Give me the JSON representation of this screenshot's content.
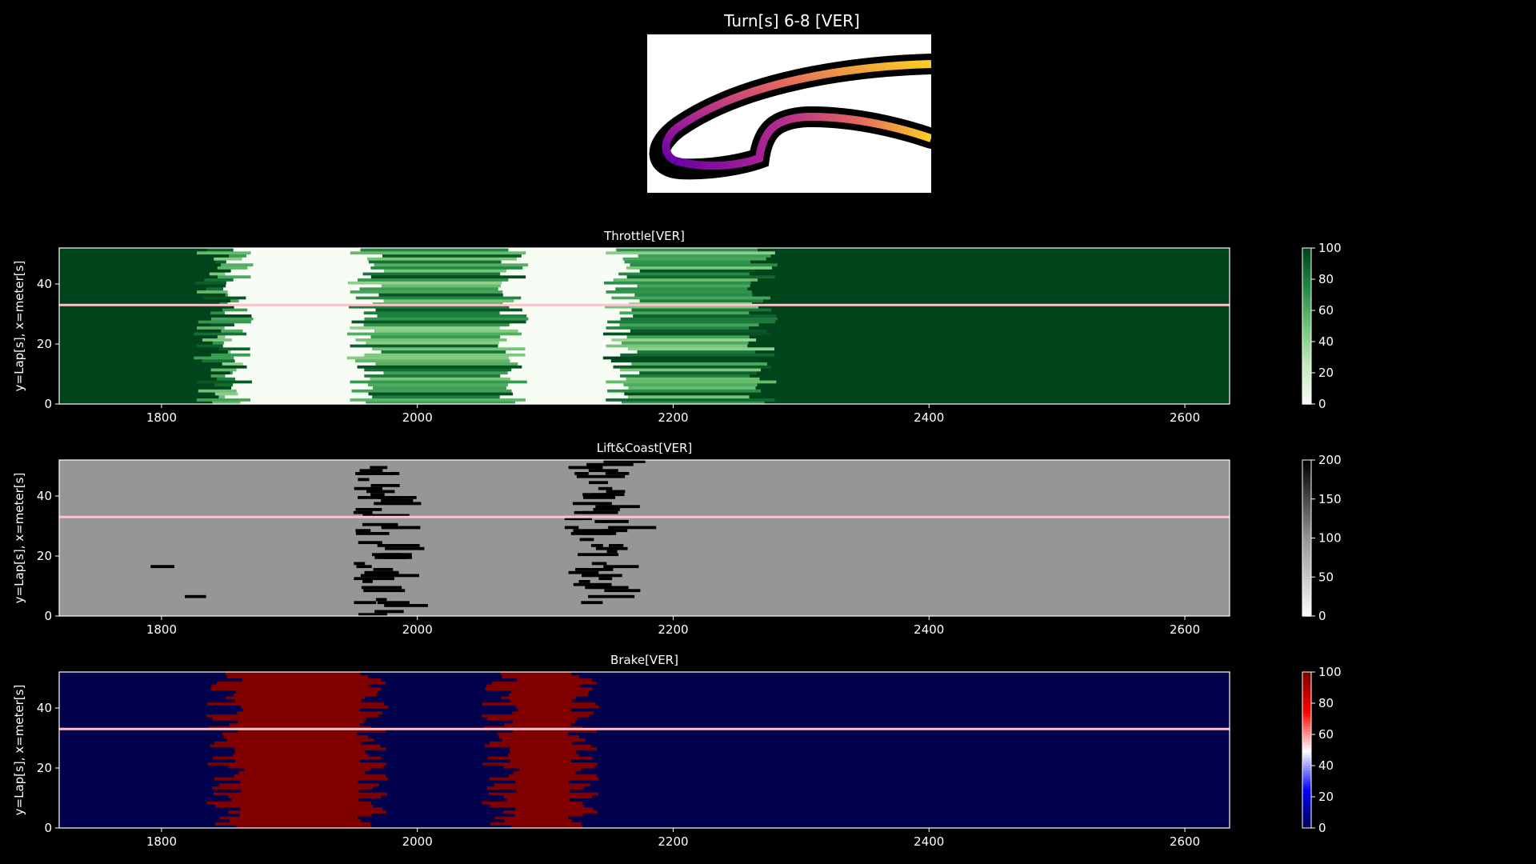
{
  "title": "Turn[s] 6-8 [VER]",
  "track_map": {
    "colormap": "plasma"
  },
  "chart_data": [
    {
      "type": "heatmap",
      "title": "Throttle[VER]",
      "ylabel": "y=Lap[s], x=meter[s]",
      "xlim": [
        1720,
        2635
      ],
      "ylim": [
        0,
        52
      ],
      "xticks": [
        1800,
        2000,
        2200,
        2400,
        2600
      ],
      "yticks": [
        0,
        20,
        40
      ],
      "colorbar": {
        "min": 0,
        "max": 100,
        "ticks": [
          0,
          20,
          40,
          60,
          80,
          100
        ],
        "colormap": "Greens"
      },
      "highlight_lap": 33,
      "highlight_color": "#ffc0cb",
      "segments_description": [
        {
          "x_start": 1720,
          "x_end": 1840,
          "value": 100
        },
        {
          "x_start": 1840,
          "x_end": 1860,
          "value": 60
        },
        {
          "x_start": 1860,
          "x_end": 1960,
          "value": 0
        },
        {
          "x_start": 1960,
          "x_end": 2075,
          "value": 70
        },
        {
          "x_start": 2075,
          "x_end": 2160,
          "value": 0
        },
        {
          "x_start": 2160,
          "x_end": 2270,
          "value": 60
        },
        {
          "x_start": 2270,
          "x_end": 2635,
          "value": 100
        }
      ]
    },
    {
      "type": "heatmap",
      "title": "Lift&Coast[VER]",
      "ylabel": "y=Lap[s], x=meter[s]",
      "xlim": [
        1720,
        2635
      ],
      "ylim": [
        0,
        52
      ],
      "xticks": [
        1800,
        2000,
        2200,
        2400,
        2600
      ],
      "yticks": [
        0,
        20,
        40
      ],
      "colorbar": {
        "min": 0,
        "max": 200,
        "ticks": [
          0,
          50,
          100,
          150,
          200
        ],
        "colormap": "Greys"
      },
      "background_value": 100,
      "event_value": 200,
      "highlight_lap": 33,
      "highlight_color": "#ffc0cb"
    },
    {
      "type": "heatmap",
      "title": "Brake[VER]",
      "ylabel": "y=Lap[s], x=meter[s]",
      "xlim": [
        1720,
        2635
      ],
      "ylim": [
        0,
        52
      ],
      "xticks": [
        1800,
        2000,
        2200,
        2400,
        2600
      ],
      "yticks": [
        0,
        20,
        40
      ],
      "colorbar": {
        "min": 0,
        "max": 100,
        "ticks": [
          0,
          20,
          40,
          60,
          80,
          100
        ],
        "colormap": "seismic"
      },
      "segments_description": [
        {
          "x_start": 1720,
          "x_end": 1850,
          "value": 0
        },
        {
          "x_start": 1850,
          "x_end": 1965,
          "value": 100
        },
        {
          "x_start": 1965,
          "x_end": 2065,
          "value": 0
        },
        {
          "x_start": 2065,
          "x_end": 2130,
          "value": 100
        },
        {
          "x_start": 2130,
          "x_end": 2635,
          "value": 0
        }
      ],
      "highlight_lap": 33,
      "highlight_color": "#ffc0cb"
    }
  ]
}
